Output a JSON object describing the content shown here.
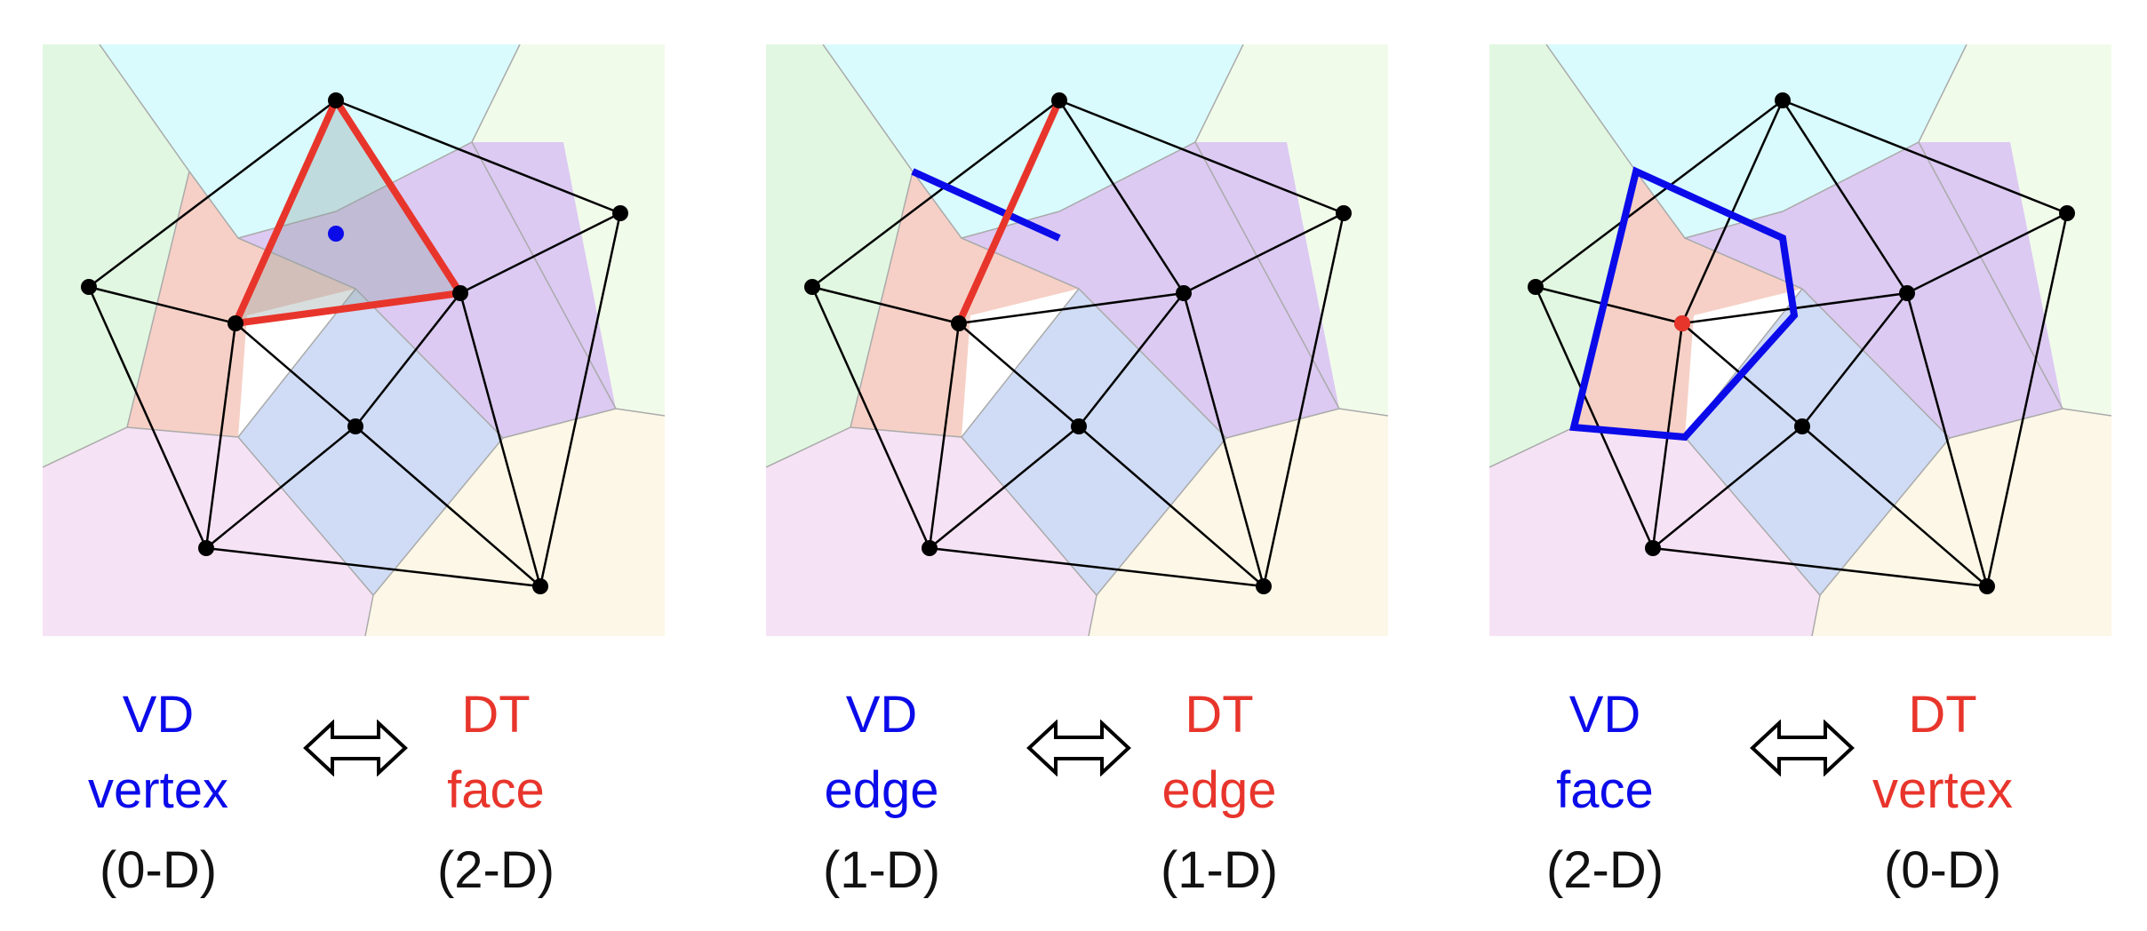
{
  "colors": {
    "vd": "#0b0bea",
    "dt": "#e8352c",
    "text": "#111111",
    "regions": {
      "cyan": "#d9fbfd",
      "lightgreen": "#f1fbea",
      "green": "#e1f7e1",
      "salmon": "#f6d0c6",
      "purple": "#dccaf2",
      "blue": "#d0dcf5",
      "pink": "#f6e2f5",
      "cream": "#fdf7e7"
    }
  },
  "panels": [
    {
      "id": "vertex-face",
      "left_label": {
        "line1": "VD",
        "line2": "vertex",
        "dim": "(0-D)"
      },
      "right_label": {
        "line1": "DT",
        "line2": "face",
        "dim": "(2-D)"
      }
    },
    {
      "id": "edge-edge",
      "left_label": {
        "line1": "VD",
        "line2": "edge",
        "dim": "(1-D)"
      },
      "right_label": {
        "line1": "DT",
        "line2": "edge",
        "dim": "(1-D)"
      }
    },
    {
      "id": "face-vertex",
      "left_label": {
        "line1": "VD",
        "line2": "face",
        "dim": "(2-D)"
      },
      "right_label": {
        "line1": "DT",
        "line2": "vertex",
        "dim": "(0-D)"
      }
    }
  ],
  "arrow_icon": "double-arrow-icon"
}
